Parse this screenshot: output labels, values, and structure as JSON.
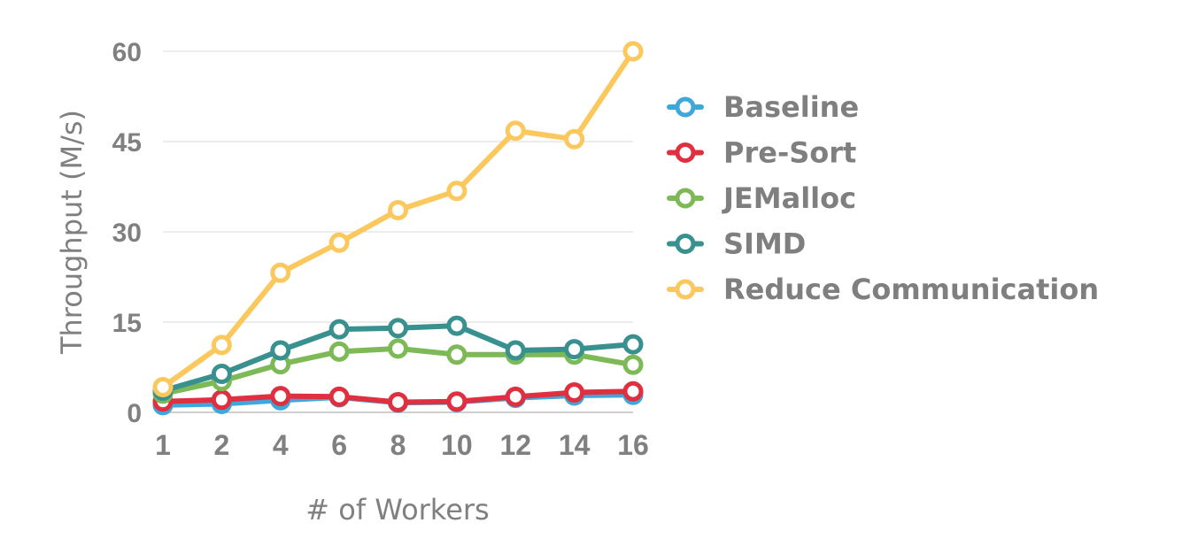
{
  "chart_data": {
    "type": "line",
    "xlabel": "# of Workers",
    "ylabel": "Throughput (M/s)",
    "categories": [
      "1",
      "2",
      "4",
      "6",
      "8",
      "10",
      "12",
      "14",
      "16"
    ],
    "y_ticks": [
      "0",
      "15",
      "30",
      "45",
      "60"
    ],
    "ylim": [
      0,
      60
    ],
    "grid": true,
    "legend_position": "right",
    "series": [
      {
        "name": "Baseline",
        "color": "#3ea8dc",
        "values": [
          1.2,
          1.4,
          2.0,
          2.5,
          1.6,
          1.7,
          2.4,
          2.8,
          2.9
        ]
      },
      {
        "name": "Pre-Sort",
        "color": "#e03040",
        "values": [
          1.8,
          2.1,
          2.7,
          2.6,
          1.7,
          1.8,
          2.6,
          3.3,
          3.5
        ]
      },
      {
        "name": "JEMalloc",
        "color": "#7dba57",
        "values": [
          3.1,
          5.2,
          8.0,
          10.1,
          10.6,
          9.6,
          9.6,
          9.6,
          7.9
        ]
      },
      {
        "name": "SIMD",
        "color": "#38908f",
        "values": [
          3.6,
          6.4,
          10.3,
          13.8,
          14.0,
          14.4,
          10.3,
          10.5,
          11.3
        ]
      },
      {
        "name": "Reduce Communication",
        "color": "#fbc85e",
        "values": [
          4.2,
          11.2,
          23.2,
          28.2,
          33.6,
          36.8,
          46.8,
          45.4,
          60.0
        ]
      }
    ]
  }
}
